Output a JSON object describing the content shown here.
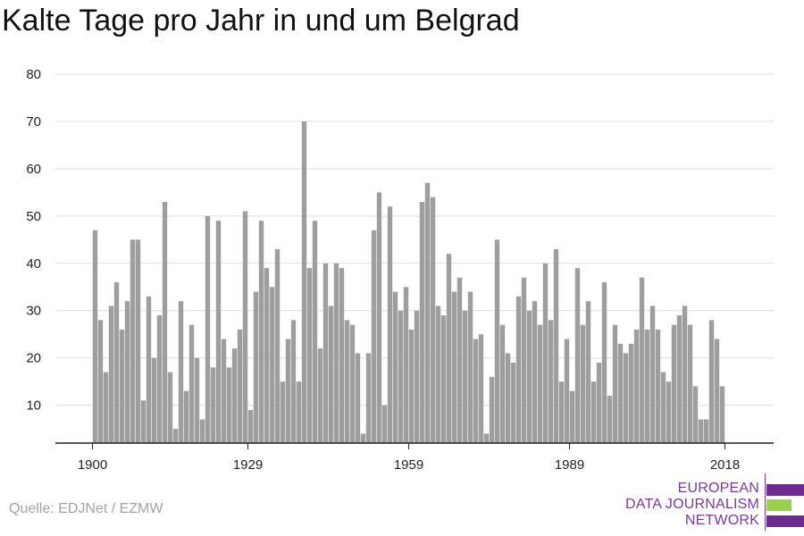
{
  "title": "Kalte Tage pro Jahr in und um Belgrad",
  "source": "Quelle: EDJNet / EZMW",
  "logo": {
    "lines": [
      "EUROPEAN",
      "DATA JOURNALISM",
      "NETWORK"
    ],
    "colors": {
      "purple": "#6c2c8e",
      "green": "#9ad04b",
      "text": "#7a3a9a"
    }
  },
  "colors": {
    "bar": "#9e9e9e",
    "grid": "#dddddd",
    "axis": "#222222"
  },
  "chart_data": {
    "type": "bar",
    "title": "Kalte Tage pro Jahr in und um Belgrad",
    "xlabel": "",
    "ylabel": "",
    "x_start": 1900,
    "x_end": 2018,
    "x_ticks": [
      1900,
      1929,
      1959,
      1989,
      2018
    ],
    "y_ticks": [
      10,
      20,
      30,
      40,
      50,
      60,
      70,
      80
    ],
    "ylim": [
      2,
      80
    ],
    "grid": true,
    "legend": "none",
    "values": [
      47,
      28,
      17,
      31,
      36,
      26,
      32,
      45,
      45,
      11,
      33,
      20,
      29,
      53,
      17,
      5,
      32,
      13,
      27,
      20,
      7,
      50,
      18,
      49,
      24,
      18,
      22,
      26,
      51,
      9,
      34,
      49,
      39,
      35,
      43,
      15,
      24,
      28,
      15,
      70,
      39,
      49,
      22,
      40,
      31,
      40,
      39,
      28,
      27,
      21,
      4,
      21,
      47,
      55,
      10,
      52,
      34,
      30,
      35,
      26,
      30,
      53,
      57,
      54,
      31,
      29,
      42,
      34,
      37,
      30,
      34,
      24,
      25,
      4,
      16,
      45,
      27,
      21,
      19,
      33,
      37,
      30,
      32,
      27,
      40,
      28,
      43,
      15,
      24,
      13,
      39,
      27,
      32,
      15,
      19,
      36,
      12,
      27,
      23,
      21,
      23,
      26,
      37,
      26,
      31,
      26,
      17,
      15,
      27,
      29,
      31,
      27,
      14,
      7,
      7,
      28,
      24,
      14
    ]
  }
}
